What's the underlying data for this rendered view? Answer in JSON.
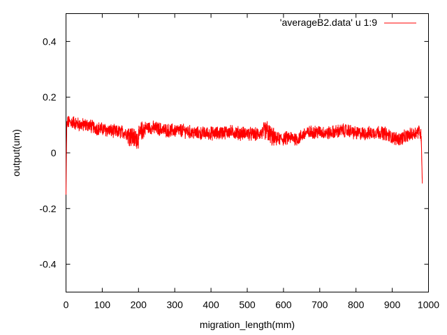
{
  "chart_data": {
    "type": "line",
    "title": "",
    "xlabel": "migration_length(mm)",
    "ylabel": "output(um)",
    "xlim": [
      0,
      1000
    ],
    "ylim": [
      -0.5,
      0.5
    ],
    "x_ticks": [
      "0",
      "100",
      "200",
      "300",
      "400",
      "500",
      "600",
      "700",
      "800",
      "900",
      "1000"
    ],
    "y_ticks": [
      "-0.4",
      "-0.2",
      "0",
      "0.2",
      "0.4"
    ],
    "grid": false,
    "legend_position": "top-right",
    "series": [
      {
        "name": "'averageB2.data' u 1:9",
        "color": "#ff0000",
        "x_range": [
          0,
          983
        ],
        "x": [
          0,
          2,
          5,
          10,
          20,
          40,
          60,
          80,
          100,
          120,
          140,
          160,
          180,
          190,
          200,
          210,
          220,
          240,
          260,
          280,
          300,
          320,
          340,
          360,
          380,
          400,
          420,
          440,
          460,
          480,
          500,
          520,
          540,
          555,
          560,
          570,
          580,
          600,
          620,
          640,
          660,
          680,
          700,
          720,
          740,
          760,
          780,
          800,
          820,
          840,
          860,
          880,
          900,
          920,
          940,
          960,
          975,
          980,
          983
        ],
        "y": [
          -0.15,
          0.1,
          0.11,
          0.11,
          0.11,
          0.1,
          0.1,
          0.09,
          0.085,
          0.08,
          0.075,
          0.075,
          0.06,
          0.05,
          0.055,
          0.08,
          0.09,
          0.09,
          0.085,
          0.08,
          0.08,
          0.08,
          0.075,
          0.07,
          0.07,
          0.07,
          0.07,
          0.075,
          0.075,
          0.07,
          0.07,
          0.065,
          0.07,
          0.08,
          0.07,
          0.055,
          0.05,
          0.05,
          0.055,
          0.05,
          0.07,
          0.075,
          0.075,
          0.07,
          0.075,
          0.08,
          0.08,
          0.07,
          0.07,
          0.07,
          0.075,
          0.07,
          0.055,
          0.05,
          0.06,
          0.07,
          0.08,
          0.06,
          -0.11
        ]
      }
    ]
  }
}
